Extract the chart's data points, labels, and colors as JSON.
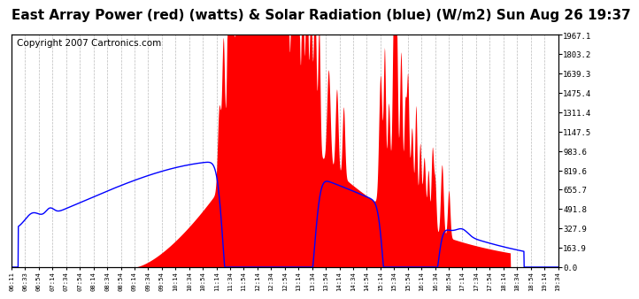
{
  "title": "East Array Power (red) (watts) & Solar Radiation (blue) (W/m2) Sun Aug 26 19:37",
  "copyright": "Copyright 2007 Cartronics.com",
  "title_fontsize": 11,
  "copyright_fontsize": 7.5,
  "background_color": "#ffffff",
  "plot_bg_color": "#ffffff",
  "grid_color": "#bbbbbb",
  "red_color": "#ff0000",
  "blue_color": "#0000ff",
  "y_ticks": [
    0.0,
    163.9,
    327.9,
    491.8,
    655.7,
    819.6,
    983.6,
    1147.5,
    1311.4,
    1475.4,
    1639.3,
    1803.2,
    1967.1
  ],
  "x_tick_labels": [
    "06:11",
    "06:33",
    "06:54",
    "07:14",
    "07:34",
    "07:54",
    "08:14",
    "08:34",
    "08:54",
    "09:14",
    "09:34",
    "09:54",
    "10:14",
    "10:34",
    "10:54",
    "11:14",
    "11:34",
    "11:54",
    "12:14",
    "12:34",
    "12:54",
    "13:14",
    "13:34",
    "13:54",
    "14:14",
    "14:34",
    "14:54",
    "15:14",
    "15:34",
    "15:54",
    "16:14",
    "16:34",
    "16:54",
    "17:14",
    "17:34",
    "17:54",
    "18:14",
    "18:34",
    "18:54",
    "19:14",
    "19:34"
  ],
  "ymax": 1967.1
}
